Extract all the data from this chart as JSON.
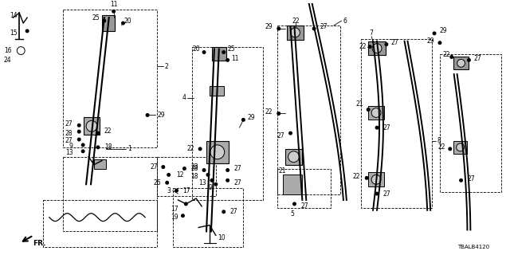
{
  "bg_color": "#ffffff",
  "diagram_id": "TBALB4120",
  "fig_width": 6.4,
  "fig_height": 3.2,
  "dpi": 100,
  "fs": 5.5
}
